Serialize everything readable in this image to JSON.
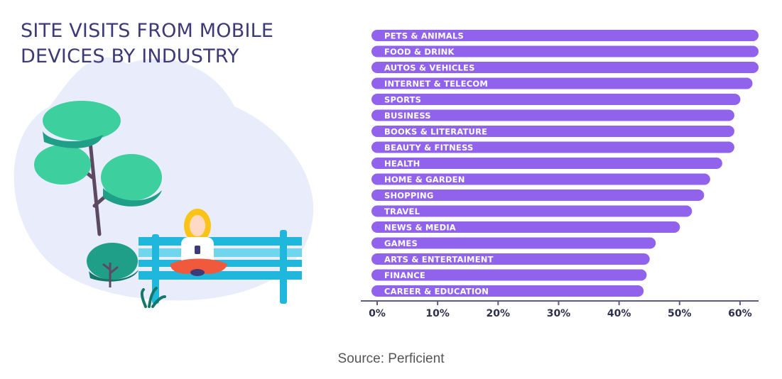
{
  "chart_data": {
    "type": "bar",
    "orientation": "horizontal",
    "title": "SITE VISITS FROM MOBILE DEVICES BY INDUSTRY",
    "title_lines": [
      "SITE VISITS FROM MOBILE",
      "DEVICES BY INDUSTRY"
    ],
    "categories": [
      "PETS & ANIMALS",
      "FOOD & DRINK",
      "AUTOS & VEHICLES",
      "INTERNET & TELECOM",
      "SPORTS",
      "BUSINESS",
      "BOOKS & LITERATURE",
      "BEAUTY & FITNESS",
      "HEALTH",
      "HOME & GARDEN",
      "SHOPPING",
      "TRAVEL",
      "NEWS & MEDIA",
      "GAMES",
      "ARTS & ENTERTAIMENT",
      "FINANCE",
      "CAREER & EDUCATION"
    ],
    "values": [
      64.5,
      64,
      64,
      63,
      61,
      60,
      60,
      60,
      58,
      56,
      55,
      53,
      51,
      47,
      46,
      45.5,
      45
    ],
    "xlim": [
      0,
      64
    ],
    "xticks": [
      "0%",
      "10%",
      "20%",
      "30%",
      "40%",
      "50%",
      "60%"
    ],
    "xtick_values": [
      0,
      10,
      20,
      30,
      40,
      50,
      60
    ],
    "grid": false,
    "bar_color": "#9163ec"
  },
  "source": "Source: Perficient",
  "colors": {
    "title": "#3d3a78",
    "blob": "#e9edfb",
    "tree_light": "#3dcf9d",
    "tree_dark": "#1f9e88",
    "trunk": "#5d4a62",
    "bench": "#1fb8dc",
    "bench_light": "#6fd6ee",
    "hair": "#f9c417",
    "pants": "#f0593b"
  }
}
